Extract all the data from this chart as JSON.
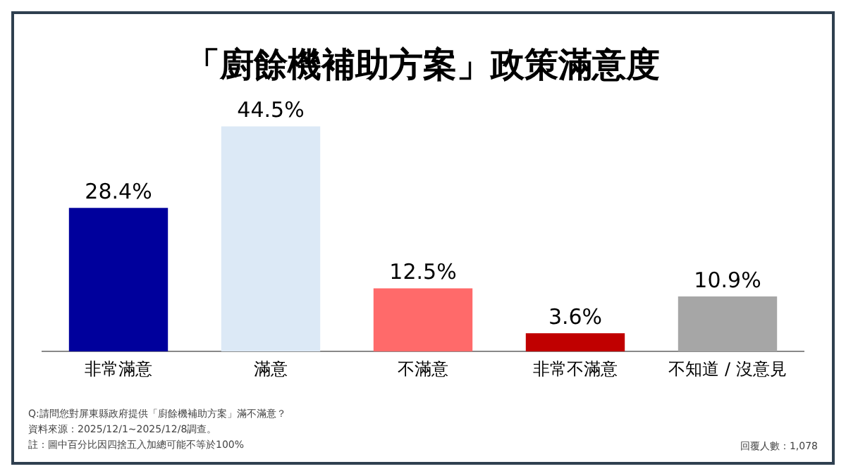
{
  "chart_data": {
    "type": "bar",
    "title": "「廚餘機補助方案」政策滿意度",
    "categories": [
      "非常滿意",
      "滿意",
      "不滿意",
      "非常不滿意",
      "不知道 / 沒意見"
    ],
    "values": [
      28.4,
      44.5,
      12.5,
      3.6,
      10.9
    ],
    "colors": [
      "#00009c",
      "#dce9f6",
      "#ff6a6a",
      "#c00000",
      "#a6a6a6"
    ],
    "value_labels": [
      "28.4%",
      "44.5%",
      "12.5%",
      "3.6%",
      "10.9%"
    ],
    "grid": false,
    "annotations": [
      "Q:請問您對屏東縣政府提供「廚餘機補助方案」滿不滿意？",
      "資料來源：2025/12/1~2025/12/8調查。",
      "註：圖中百分比因四捨五入加總可能不等於100%",
      "回覆人數：1,078"
    ]
  }
}
